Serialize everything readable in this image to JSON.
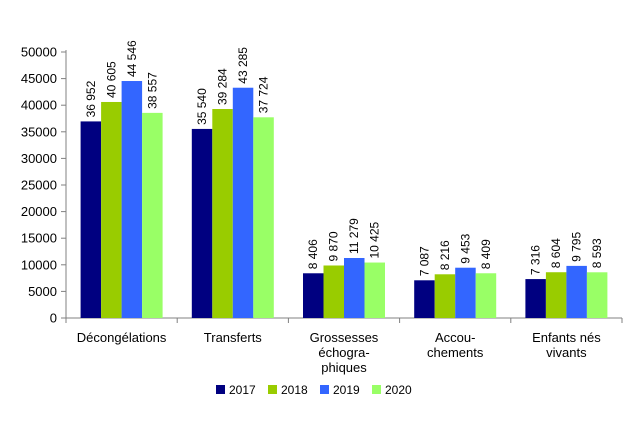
{
  "chart_data": {
    "type": "bar",
    "title": "",
    "xlabel": "",
    "ylabel": "",
    "ylim": [
      0,
      50000
    ],
    "yticks": [
      0,
      5000,
      10000,
      15000,
      20000,
      25000,
      30000,
      35000,
      40000,
      45000,
      50000
    ],
    "ytick_labels": [
      "0",
      "5000",
      "10000",
      "15000",
      "20000",
      "25000",
      "30000",
      "35000",
      "40000",
      "45000",
      "50000"
    ],
    "categories": [
      [
        "Décongélations"
      ],
      [
        "Transferts"
      ],
      [
        "Grossesses",
        "échogra-",
        "phiques"
      ],
      [
        "Accou-",
        "chements"
      ],
      [
        "Enfants nés",
        "vivants"
      ]
    ],
    "series": [
      {
        "name": "2017",
        "color": "#000080",
        "values": [
          36952,
          35540,
          8406,
          7087,
          7316
        ],
        "labels": [
          "36 952",
          "35 540",
          "8 406",
          "7 087",
          "7 316"
        ]
      },
      {
        "name": "2018",
        "color": "#99cc00",
        "values": [
          40605,
          39284,
          9870,
          8216,
          8604
        ],
        "labels": [
          "40 605",
          "39 284",
          "9 870",
          "8 216",
          "8 604"
        ]
      },
      {
        "name": "2019",
        "color": "#3366ff",
        "values": [
          44546,
          43285,
          11279,
          9453,
          9795
        ],
        "labels": [
          "44 546",
          "43 285",
          "11 279",
          "9 453",
          "9 795"
        ]
      },
      {
        "name": "2020",
        "color": "#99ff66",
        "values": [
          38557,
          37724,
          10425,
          8409,
          8593
        ],
        "labels": [
          "38 557",
          "37 724",
          "10 425",
          "8 409",
          "8 593"
        ]
      }
    ],
    "grid": false,
    "legend_position": "bottom"
  }
}
